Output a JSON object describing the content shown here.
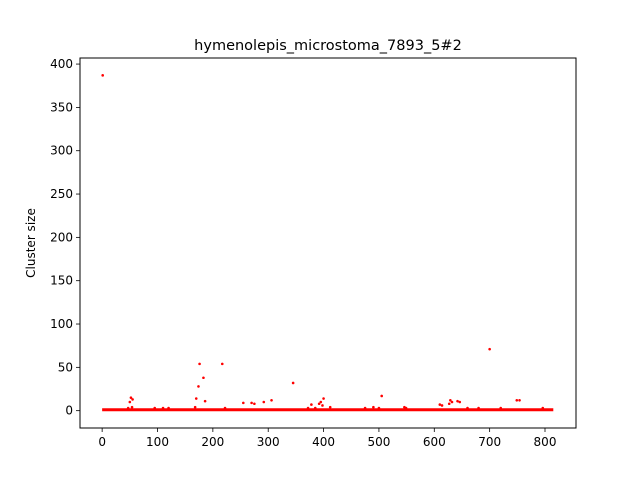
{
  "chart_data": {
    "type": "scatter",
    "title": "hymenolepis_microstoma_7893_5#2",
    "xlabel": "",
    "ylabel": "Cluster size",
    "xlim": [
      -40,
      856
    ],
    "ylim": [
      -20,
      407
    ],
    "xticks": [
      0,
      100,
      200,
      300,
      400,
      500,
      600,
      700,
      800
    ],
    "yticks": [
      0,
      50,
      100,
      150,
      200,
      250,
      300,
      350,
      400
    ],
    "grid": false,
    "legend": "none",
    "marker_color": "#ff0000",
    "baseline": {
      "x_from": 0,
      "x_to": 815,
      "y": 1
    },
    "series": [
      {
        "points": [
          [
            1,
            387
          ],
          [
            47,
            3
          ],
          [
            50,
            10
          ],
          [
            52,
            15
          ],
          [
            54,
            4
          ],
          [
            55,
            13
          ],
          [
            95,
            3
          ],
          [
            110,
            3
          ],
          [
            120,
            3
          ],
          [
            168,
            4
          ],
          [
            170,
            14
          ],
          [
            174,
            28
          ],
          [
            176,
            54
          ],
          [
            183,
            38
          ],
          [
            186,
            11
          ],
          [
            217,
            54
          ],
          [
            222,
            3
          ],
          [
            255,
            9
          ],
          [
            270,
            9
          ],
          [
            275,
            8
          ],
          [
            292,
            10
          ],
          [
            306,
            12
          ],
          [
            345,
            32
          ],
          [
            372,
            3
          ],
          [
            378,
            7
          ],
          [
            385,
            3
          ],
          [
            392,
            8
          ],
          [
            395,
            10
          ],
          [
            398,
            6
          ],
          [
            400,
            14
          ],
          [
            412,
            4
          ],
          [
            475,
            3
          ],
          [
            490,
            4
          ],
          [
            500,
            3
          ],
          [
            505,
            17
          ],
          [
            546,
            4
          ],
          [
            549,
            3
          ],
          [
            610,
            7
          ],
          [
            614,
            6
          ],
          [
            627,
            8
          ],
          [
            629,
            12
          ],
          [
            632,
            10
          ],
          [
            642,
            11
          ],
          [
            646,
            10
          ],
          [
            660,
            3
          ],
          [
            680,
            3
          ],
          [
            700,
            71
          ],
          [
            720,
            3
          ],
          [
            749,
            12
          ],
          [
            754,
            12
          ],
          [
            796,
            3
          ]
        ]
      }
    ]
  }
}
